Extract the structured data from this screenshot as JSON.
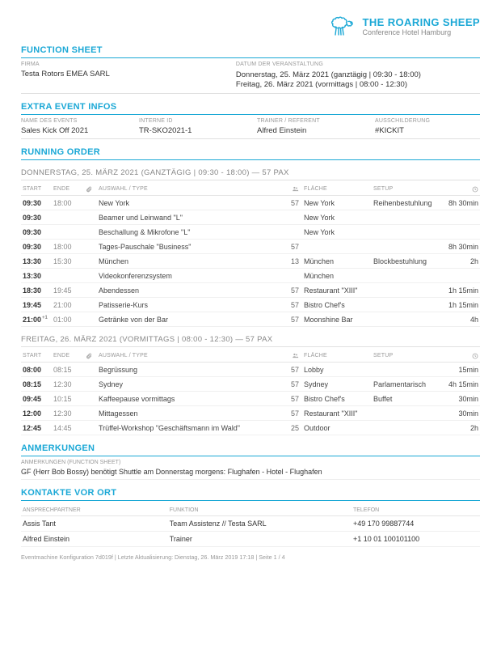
{
  "brand": {
    "name": "THE ROARING SHEEP",
    "subtitle": "Conference Hotel Hamburg",
    "color": "#1ba8d6"
  },
  "titles": {
    "functionSheet": "FUNCTION SHEET",
    "extraInfos": "EXTRA EVENT INFOS",
    "runningOrder": "RUNNING ORDER",
    "notes": "ANMERKUNGEN",
    "contacts": "KONTAKTE VOR ORT"
  },
  "topFields": {
    "firmaLabel": "FIRMA",
    "firmaValue": "Testa Rotors EMEA SARL",
    "datumLabel": "DATUM DER VERANSTALTUNG",
    "datumLine1": "Donnerstag, 25. März 2021 (ganztägig | 09:30 - 18:00)",
    "datumLine2": "Freitag, 26. März 2021 (vormittags | 08:00 - 12:30)"
  },
  "extraFields": {
    "nameLabel": "NAME DES EVENTS",
    "nameValue": "Sales Kick Off 2021",
    "idLabel": "INTERNE ID",
    "idValue": "TR-SKO2021-1",
    "trainerLabel": "TRAINER / REFERENT",
    "trainerValue": "Alfred Einstein",
    "signageLabel": "AUSSCHILDERUNG",
    "signageValue": "#KICKIT"
  },
  "runHeaders": {
    "start": "START",
    "end": "ENDE",
    "type": "AUSWAHL / TYPE",
    "area": "FLÄCHE",
    "setup": "SETUP"
  },
  "day1": {
    "title": "DONNERSTAG, 25. MÄRZ 2021 (GANZTÄGIG | 09:30 - 18:00) — 57 PAX",
    "rows": [
      {
        "start": "09:30",
        "end": "18:00",
        "type": "New York",
        "pax": "57",
        "area": "New York",
        "setup": "Reihenbestuhlung",
        "dur": "8h 30min"
      },
      {
        "start": "09:30",
        "end": "",
        "type": "Beamer und Leinwand \"L\"",
        "pax": "",
        "area": "New York",
        "setup": "",
        "dur": ""
      },
      {
        "start": "09:30",
        "end": "",
        "type": "Beschallung & Mikrofone \"L\"",
        "pax": "",
        "area": "New York",
        "setup": "",
        "dur": ""
      },
      {
        "start": "09:30",
        "end": "18:00",
        "type": "Tages-Pauschale \"Business\"",
        "pax": "57",
        "area": "",
        "setup": "",
        "dur": "8h 30min"
      },
      {
        "start": "13:30",
        "end": "15:30",
        "type": "München",
        "pax": "13",
        "area": "München",
        "setup": "Blockbestuhlung",
        "dur": "2h"
      },
      {
        "start": "13:30",
        "end": "",
        "type": "Videokonferenzsystem",
        "pax": "",
        "area": "München",
        "setup": "",
        "dur": ""
      },
      {
        "start": "18:30",
        "end": "19:45",
        "type": "Abendessen",
        "pax": "57",
        "area": "Restaurant \"XIII\"",
        "setup": "",
        "dur": "1h 15min"
      },
      {
        "start": "19:45",
        "end": "21:00",
        "type": "Patisserie-Kurs",
        "pax": "57",
        "area": "Bistro Chef's",
        "setup": "",
        "dur": "1h 15min"
      },
      {
        "start": "21:00",
        "plus1": "+1",
        "end": "01:00",
        "type": "Getränke von der Bar",
        "pax": "57",
        "area": "Moonshine Bar",
        "setup": "",
        "dur": "4h"
      }
    ]
  },
  "day2": {
    "title": "FREITAG, 26. MÄRZ 2021 (VORMITTAGS | 08:00 - 12:30) — 57 PAX",
    "rows": [
      {
        "start": "08:00",
        "end": "08:15",
        "type": "Begrüssung",
        "pax": "57",
        "area": "Lobby",
        "setup": "",
        "dur": "15min"
      },
      {
        "start": "08:15",
        "end": "12:30",
        "type": "Sydney",
        "pax": "57",
        "area": "Sydney",
        "setup": "Parlamentarisch",
        "dur": "4h 15min"
      },
      {
        "start": "09:45",
        "end": "10:15",
        "type": "Kaffeepause vormittags",
        "pax": "57",
        "area": "Bistro Chef's",
        "setup": "Buffet",
        "dur": "30min"
      },
      {
        "start": "12:00",
        "end": "12:30",
        "type": "Mittagessen",
        "pax": "57",
        "area": "Restaurant \"XIII\"",
        "setup": "",
        "dur": "30min"
      },
      {
        "start": "12:45",
        "end": "14:45",
        "type": "Trüffel-Workshop \"Geschäftsmann im Wald\"",
        "pax": "25",
        "area": "Outdoor",
        "setup": "",
        "dur": "2h"
      }
    ]
  },
  "notes": {
    "label": "ANMERKUNGEN (FUNCTION SHEET)",
    "value": "GF (Herr Bob Bossy) benötigt Shuttle am Donnerstag morgens: Flughafen - Hotel - Flughafen"
  },
  "contactsTable": {
    "h1": "ANSPRECHPARTNER",
    "h2": "FUNKTION",
    "h3": "TELEFON",
    "rows": [
      {
        "name": "Assis Tant",
        "role": "Team Assistenz // Testa SARL",
        "phone": "+49 170 99887744"
      },
      {
        "name": "Alfred Einstein",
        "role": "Trainer",
        "phone": "+1 10 01 100101100"
      }
    ]
  },
  "footer": "Eventmachine Konfiguration 7d019f | Letzte Aktualisierung: Dienstag, 26. März 2019 17:18 | Seite 1 / 4"
}
